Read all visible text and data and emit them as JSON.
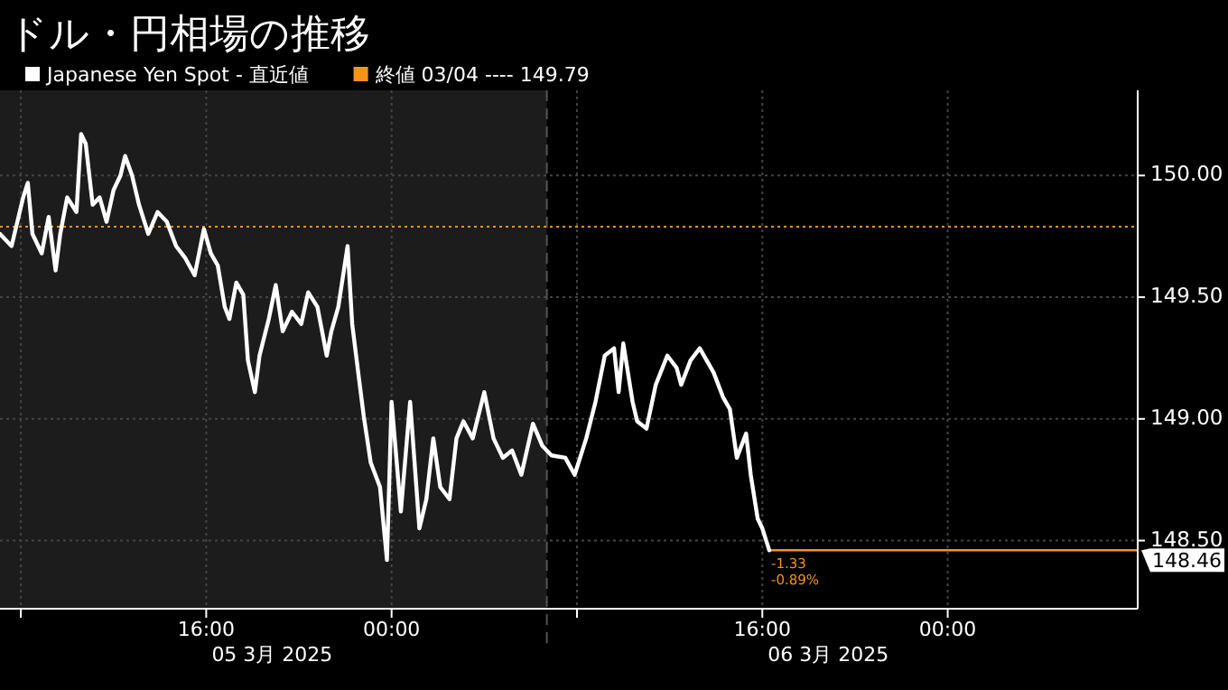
{
  "chart_data": {
    "type": "line",
    "title": "ドル・円相場の推移",
    "x": [
      "2025-03-05T07:06",
      "2025-03-05T07:36",
      "2025-03-05T08:06",
      "2025-03-05T08:18",
      "2025-03-05T08:30",
      "2025-03-05T08:54",
      "2025-03-05T09:12",
      "2025-03-05T09:30",
      "2025-03-05T09:42",
      "2025-03-05T10:00",
      "2025-03-05T10:24",
      "2025-03-05T10:36",
      "2025-03-05T10:48",
      "2025-03-05T11:06",
      "2025-03-05T11:24",
      "2025-03-05T11:42",
      "2025-03-05T12:00",
      "2025-03-05T12:18",
      "2025-03-05T12:30",
      "2025-03-05T12:48",
      "2025-03-05T13:06",
      "2025-03-05T13:30",
      "2025-03-05T13:54",
      "2025-03-05T14:18",
      "2025-03-05T14:42",
      "2025-03-05T15:06",
      "2025-03-05T15:30",
      "2025-03-05T15:54",
      "2025-03-05T16:12",
      "2025-03-05T16:30",
      "2025-03-05T16:48",
      "2025-03-05T17:00",
      "2025-03-05T17:18",
      "2025-03-05T17:36",
      "2025-03-05T17:48",
      "2025-03-05T18:06",
      "2025-03-05T18:18",
      "2025-03-05T18:42",
      "2025-03-05T19:00",
      "2025-03-05T19:18",
      "2025-03-05T19:42",
      "2025-03-05T20:06",
      "2025-03-05T20:24",
      "2025-03-05T20:48",
      "2025-03-05T21:12",
      "2025-03-05T21:24",
      "2025-03-05T21:42",
      "2025-03-05T22:06",
      "2025-03-05T22:18",
      "2025-03-05T22:36",
      "2025-03-05T22:48",
      "2025-03-05T23:06",
      "2025-03-05T23:30",
      "2025-03-05T23:48",
      "2025-03-06T00:00",
      "2025-03-06T00:24",
      "2025-03-06T00:48",
      "2025-03-06T01:12",
      "2025-03-06T01:30",
      "2025-03-06T01:48",
      "2025-03-06T02:06",
      "2025-03-06T02:30",
      "2025-03-06T02:48",
      "2025-03-06T03:06",
      "2025-03-06T03:30",
      "2025-03-06T04:00",
      "2025-03-06T04:24",
      "2025-03-06T04:48",
      "2025-03-06T05:12",
      "2025-03-06T05:36",
      "2025-03-06T06:06",
      "2025-03-06T06:30",
      "2025-03-06T06:54",
      "2025-03-06T07:30",
      "2025-03-06T07:54",
      "2025-03-06T08:24",
      "2025-03-06T08:48",
      "2025-03-06T09:12",
      "2025-03-06T09:36",
      "2025-03-06T09:48",
      "2025-03-06T10:00",
      "2025-03-06T10:24",
      "2025-03-06T10:36",
      "2025-03-06T11:00",
      "2025-03-06T11:24",
      "2025-03-06T11:54",
      "2025-03-06T12:18",
      "2025-03-06T12:30",
      "2025-03-06T12:54",
      "2025-03-06T13:18",
      "2025-03-06T13:54",
      "2025-03-06T14:18",
      "2025-03-06T14:36",
      "2025-03-06T14:54",
      "2025-03-06T15:18",
      "2025-03-06T15:30",
      "2025-03-06T15:48",
      "2025-03-06T16:00",
      "2025-03-06T16:18"
    ],
    "series": [
      {
        "name": "Japanese Yen Spot - 直近値",
        "color": "#ffffff",
        "values": [
          149.76,
          149.71,
          149.91,
          149.97,
          149.76,
          149.68,
          149.83,
          149.61,
          149.76,
          149.91,
          149.85,
          150.17,
          150.13,
          149.88,
          149.91,
          149.81,
          149.94,
          150.0,
          150.08,
          150.0,
          149.88,
          149.76,
          149.85,
          149.81,
          149.71,
          149.66,
          149.59,
          149.78,
          149.68,
          149.63,
          149.46,
          149.41,
          149.56,
          149.51,
          149.24,
          149.11,
          149.26,
          149.41,
          149.55,
          149.36,
          149.44,
          149.39,
          149.52,
          149.46,
          149.26,
          149.36,
          149.46,
          149.71,
          149.39,
          149.16,
          149.01,
          148.82,
          148.72,
          148.42,
          149.07,
          148.62,
          149.07,
          148.55,
          148.67,
          148.92,
          148.72,
          148.67,
          148.92,
          148.99,
          148.92,
          149.11,
          148.92,
          148.84,
          148.87,
          148.77,
          148.98,
          148.89,
          148.85,
          148.84,
          148.77,
          148.92,
          149.07,
          149.26,
          149.29,
          149.11,
          149.31,
          149.07,
          148.99,
          148.96,
          149.14,
          149.26,
          149.21,
          149.14,
          149.24,
          149.29,
          149.19,
          149.09,
          149.04,
          148.84,
          148.94,
          148.77,
          148.59,
          148.55,
          148.46
        ]
      }
    ],
    "xlim": [
      "2025-03-05T07:06",
      "2025-03-07T08:12"
    ],
    "xticks": [
      {
        "value": "2025-03-05T08:00",
        "label": null
      },
      {
        "value": "2025-03-05T16:00",
        "label": "16:00"
      },
      {
        "value": "2025-03-06T00:00",
        "label": "00:00"
      },
      {
        "value": "2025-03-06T08:00",
        "label": null
      },
      {
        "value": "2025-03-06T16:00",
        "label": "16:00"
      },
      {
        "value": "2025-03-07T00:00",
        "label": "00:00"
      }
    ],
    "ylim": [
      148.22,
      150.35
    ],
    "yticks": [
      {
        "value": 148.5,
        "label": "148.50"
      },
      {
        "value": 149,
        "label": "149.00"
      },
      {
        "value": 149.5,
        "label": "149.50"
      },
      {
        "value": 150,
        "label": "150.00"
      }
    ],
    "grid": true,
    "legend": "top left",
    "marker": "none",
    "line_style": "solid",
    "bands": [
      {
        "axis": "x",
        "from": "2025-03-05T07:06",
        "to": "2025-03-06T06:42",
        "color": "#1c1c1c"
      }
    ],
    "ref_lines": [
      {
        "axis": "x",
        "value": "2025-03-06T06:42",
        "color": "#555555",
        "line_style": "dashed"
      },
      {
        "axis": "y",
        "value": 149.79,
        "label": "終値 03/04 ---- 149.79",
        "color": "#f7931a",
        "line_style": "dotted"
      },
      {
        "axis": "y",
        "value": 148.46,
        "label": "148.46",
        "color": "#f7931a",
        "line_style": "solid"
      }
    ],
    "annotations": [
      {
        "text": "-1.33",
        "x": "2025-03-06T16:18",
        "y": 148.46
      },
      {
        "text": "-0.89%",
        "x": "2025-03-06T16:18",
        "y": 148.46
      },
      "05 3月 2025",
      "06 3月 2025"
    ]
  }
}
